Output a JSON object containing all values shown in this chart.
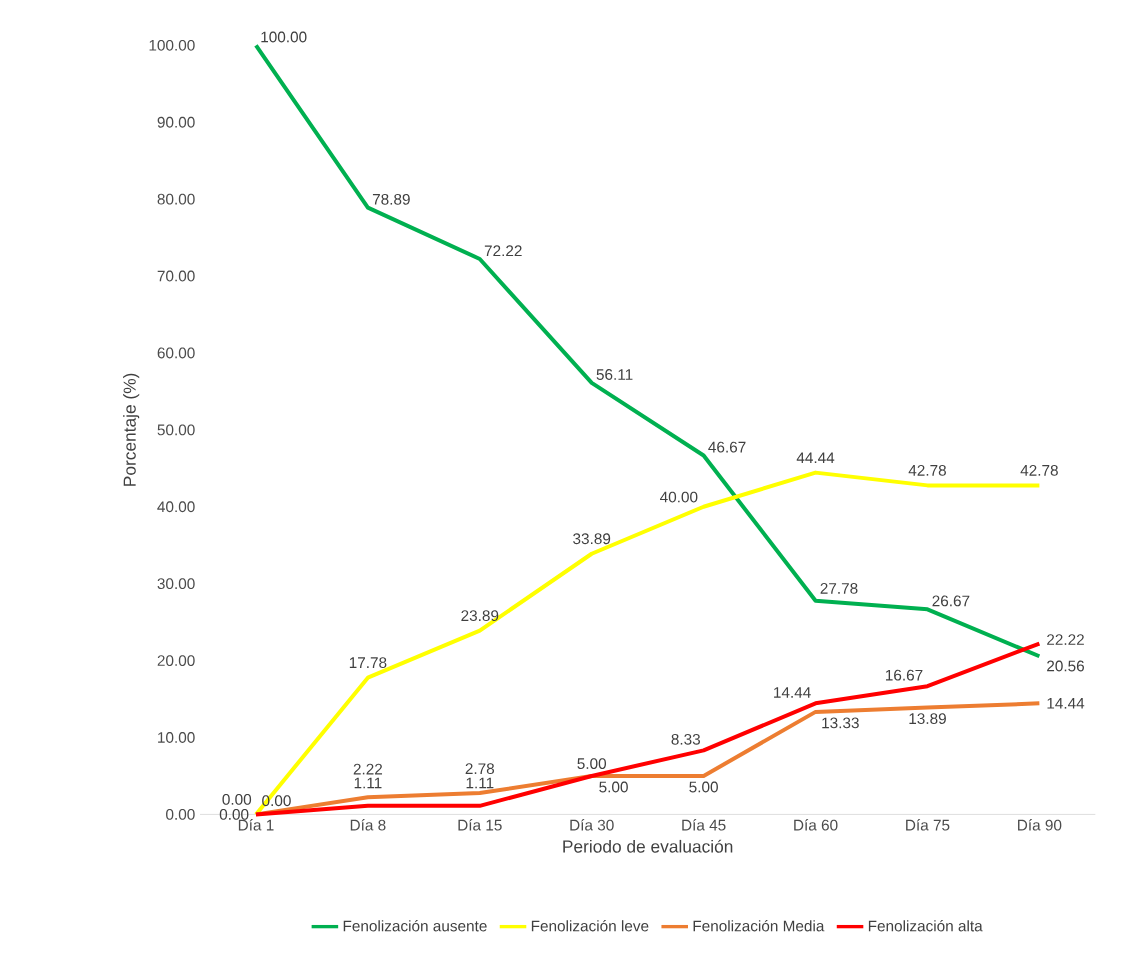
{
  "chart_data": {
    "type": "line",
    "xlabel": "Periodo de evaluación",
    "ylabel": "Porcentaje (%)",
    "categories": [
      "Día 1",
      "Día 8",
      "Día 15",
      "Día 30",
      "Día 45",
      "Día 60",
      "Día 75",
      "Día 90"
    ],
    "ylim": [
      0,
      100
    ],
    "yticks": [
      {
        "value": 0,
        "label": "0.00"
      },
      {
        "value": 10,
        "label": "10.00"
      },
      {
        "value": 20,
        "label": "20.00"
      },
      {
        "value": 30,
        "label": "30.00"
      },
      {
        "value": 40,
        "label": "40.00"
      },
      {
        "value": 50,
        "label": "50.00"
      },
      {
        "value": 60,
        "label": "60.00"
      },
      {
        "value": 70,
        "label": "70.00"
      },
      {
        "value": 80,
        "label": "80.00"
      },
      {
        "value": 90,
        "label": "90.00"
      },
      {
        "value": 100,
        "label": "100.00"
      }
    ],
    "series": [
      {
        "name": "Fenolización ausente",
        "color": "#00b050",
        "values": [
          100,
          78.89,
          72.22,
          56.11,
          46.67,
          27.78,
          26.67,
          20.56
        ],
        "value_labels": [
          "100.00",
          "78.89",
          "72.22",
          "56.11",
          "46.67",
          "27.78",
          "26.67",
          "20.56"
        ]
      },
      {
        "name": "Fenolización leve",
        "color": "#ffff00",
        "values": [
          0,
          17.78,
          23.89,
          33.89,
          40.0,
          44.44,
          42.78,
          42.78
        ],
        "value_labels": [
          "0.00",
          "17.78",
          "23.89",
          "33.89",
          "40.00",
          "44.44",
          "42.78",
          "42.78"
        ]
      },
      {
        "name": "Fenolización Media",
        "color": "#ed7d31",
        "values": [
          0,
          2.22,
          2.78,
          5.0,
          5.0,
          13.33,
          13.89,
          14.44
        ],
        "value_labels": [
          "0.00",
          "2.22",
          "2.78",
          "5.00",
          "5.00",
          "13.33",
          "13.89",
          "14.44"
        ]
      },
      {
        "name": "Fenolización alta",
        "color": "#ff0000",
        "values": [
          0,
          1.11,
          1.11,
          5.0,
          8.33,
          14.44,
          16.67,
          22.22
        ],
        "value_labels": [
          "0.00",
          "1.11",
          "1.11",
          "5.00",
          "8.33",
          "14.44",
          "16.67",
          "22.22"
        ]
      }
    ],
    "legend": "bottom",
    "grid": false,
    "marker": "none",
    "line_style": "solid"
  }
}
